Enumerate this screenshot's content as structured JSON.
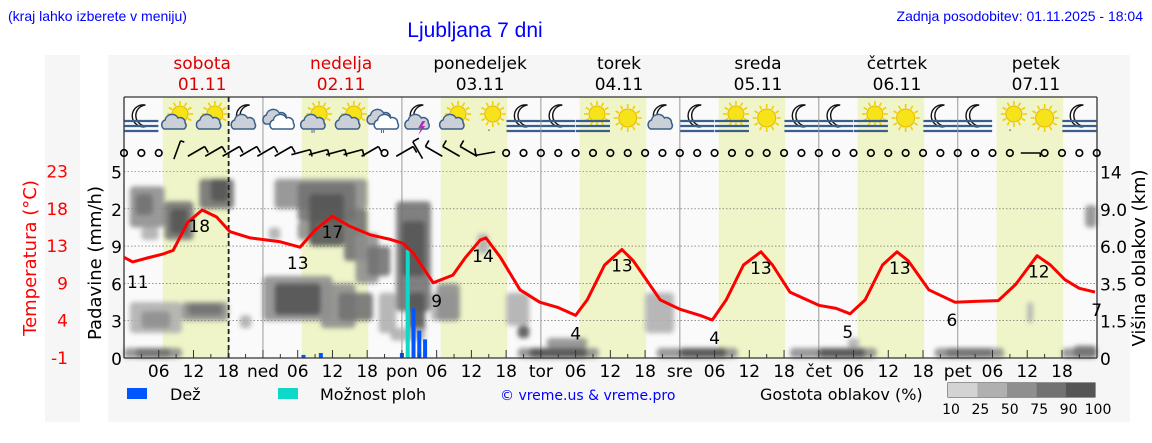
{
  "header": {
    "hint": "(kraj lahko izberete v meniju)",
    "title": "Ljubljana 7 dni",
    "updated": "Zadnja posodobitev: 01.11.2025 - 18:04"
  },
  "days": [
    {
      "name": "sobota",
      "date": "01.11",
      "weekend": true
    },
    {
      "name": "nedelja",
      "date": "02.11",
      "weekend": true
    },
    {
      "name": "ponedeljek",
      "date": "03.11",
      "weekend": false
    },
    {
      "name": "torek",
      "date": "04.11",
      "weekend": false
    },
    {
      "name": "sreda",
      "date": "05.11",
      "weekend": false
    },
    {
      "name": "četrtek",
      "date": "06.11",
      "weekend": false
    },
    {
      "name": "petek",
      "date": "07.11",
      "weekend": false
    }
  ],
  "colors": {
    "temperature": "#ff0000",
    "rain": "#0055ff",
    "shower_chance": "#10d8c8",
    "day_band": "#eff5c8",
    "link": "#0000ff"
  },
  "icons": [
    "moon-fog",
    "sun-cloud",
    "sun-cloud",
    "moon-cloud",
    "cloud",
    "sun-cloud-rain",
    "sun-cloud",
    "cloud-rain",
    "moon-cloud-thunder",
    "sun-cloud",
    "sun-small-cloud",
    "moon-fog",
    "moon-fog",
    "sun-fog",
    "sun",
    "moon-cloud",
    "moon-fog",
    "sun-fog",
    "sun",
    "moon-fog",
    "moon-fog",
    "sun-fog",
    "sun",
    "moon-fog",
    "moon-fog",
    "sun-small-cloud",
    "sun",
    "moon-fog"
  ],
  "chart_data": {
    "type": "line",
    "now_hour": 18.07,
    "x_tick_labels": [
      "06",
      "12",
      "18",
      "ned",
      "06",
      "12",
      "18",
      "pon",
      "06",
      "12",
      "18",
      "tor",
      "06",
      "12",
      "18",
      "sre",
      "06",
      "12",
      "18",
      "čet",
      "06",
      "12",
      "18",
      "pet",
      "06",
      "12",
      "18"
    ],
    "temperature": {
      "axis_title": "Temperatura (°C)",
      "tick_labels": [
        "-1",
        "4",
        "9",
        "13",
        "18",
        "23"
      ],
      "ylim": [
        -1,
        23
      ],
      "points": [
        [
          0,
          12.0
        ],
        [
          1.5,
          11.4
        ],
        [
          4,
          11.9
        ],
        [
          6.7,
          12.4
        ],
        [
          8.5,
          12.9
        ],
        [
          11,
          16.5
        ],
        [
          13.5,
          18.1
        ],
        [
          16,
          17.2
        ],
        [
          18.3,
          15.3
        ],
        [
          21.8,
          14.5
        ],
        [
          27,
          14.0
        ],
        [
          30.4,
          13.3
        ],
        [
          33,
          15.5
        ],
        [
          36,
          17.3
        ],
        [
          39,
          16.0
        ],
        [
          42.5,
          14.9
        ],
        [
          46,
          14.3
        ],
        [
          48.2,
          13.8
        ],
        [
          50,
          12.5
        ],
        [
          53.4,
          8.7
        ],
        [
          56.8,
          9.7
        ],
        [
          59,
          12.0
        ],
        [
          61.5,
          14.2
        ],
        [
          62.5,
          14.5
        ],
        [
          65,
          12.0
        ],
        [
          68.4,
          7.8
        ],
        [
          71.8,
          6.2
        ],
        [
          75,
          5.5
        ],
        [
          78,
          4.5
        ],
        [
          80,
          6.5
        ],
        [
          83,
          11.0
        ],
        [
          86,
          13.0
        ],
        [
          88,
          11.5
        ],
        [
          92.6,
          6.5
        ],
        [
          96,
          5.3
        ],
        [
          99.5,
          4.5
        ],
        [
          101.6,
          3.9
        ],
        [
          104,
          6.5
        ],
        [
          107,
          11.0
        ],
        [
          110,
          12.7
        ],
        [
          112,
          11.0
        ],
        [
          115,
          7.5
        ],
        [
          120,
          5.8
        ],
        [
          123,
          5.4
        ],
        [
          125.4,
          4.7
        ],
        [
          128,
          6.5
        ],
        [
          131,
          11.0
        ],
        [
          133.5,
          12.7
        ],
        [
          135.5,
          11.5
        ],
        [
          139,
          7.8
        ],
        [
          143.5,
          6.2
        ],
        [
          147,
          6.3
        ],
        [
          151,
          6.4
        ],
        [
          154,
          8.5
        ],
        [
          157.7,
          12.2
        ],
        [
          160,
          11.0
        ],
        [
          162.5,
          9.1
        ],
        [
          165,
          8.0
        ],
        [
          167.7,
          7.5
        ]
      ],
      "labels": [
        {
          "t": 1,
          "v": "11"
        },
        {
          "t": 13,
          "v": "18"
        },
        {
          "t": 30,
          "v": "13"
        },
        {
          "t": 36,
          "v": "17"
        },
        {
          "t": 54,
          "v": "9"
        },
        {
          "t": 62,
          "v": "14"
        },
        {
          "t": 78,
          "v": "4"
        },
        {
          "t": 86,
          "v": "13"
        },
        {
          "t": 102,
          "v": "4"
        },
        {
          "t": 110,
          "v": "13"
        },
        {
          "t": 125,
          "v": "5"
        },
        {
          "t": 134,
          "v": "13"
        },
        {
          "t": 143,
          "v": "6"
        },
        {
          "t": 158,
          "v": "12"
        },
        {
          "t": 168,
          "v": "7"
        }
      ]
    },
    "precipitation": {
      "axis_title": "Padavine (mm/h)",
      "tick_labels": [
        "0",
        "3",
        "6",
        "9",
        "2",
        "5"
      ],
      "rain": [
        [
          31,
          0.025
        ],
        [
          34,
          0.04
        ],
        [
          48,
          0.04
        ],
        [
          50,
          0.4
        ],
        [
          51,
          0.22
        ],
        [
          52,
          0.15
        ]
      ],
      "shower_chance": [
        [
          49,
          0.87
        ],
        [
          51,
          0.05
        ]
      ]
    },
    "cloud_height": {
      "axis_title": "Višina oblakov (km)",
      "tick_labels": [
        "0",
        "1.5",
        "3.5",
        "6.0",
        "9.0",
        "14"
      ],
      "levels": [
        0,
        1.5,
        3.5,
        6.0,
        9.0,
        14
      ]
    },
    "cloud_density_patches": [
      [
        1,
        7,
        7.5,
        12,
        50
      ],
      [
        2,
        5,
        8.5,
        11,
        75
      ],
      [
        7,
        12,
        6.5,
        10,
        75
      ],
      [
        8,
        11,
        7,
        9,
        90
      ],
      [
        13,
        19,
        9,
        13,
        75
      ],
      [
        15,
        18,
        10,
        13,
        90
      ],
      [
        3,
        6,
        6.5,
        7.5,
        25
      ],
      [
        1,
        10,
        1.0,
        2.5,
        25
      ],
      [
        3,
        8,
        1.2,
        2,
        50
      ],
      [
        10,
        18,
        1.5,
        2.5,
        50
      ],
      [
        11,
        17,
        1.8,
        2.4,
        75
      ],
      [
        20,
        22,
        1.2,
        1.8,
        25
      ],
      [
        0,
        10,
        0,
        0.4,
        50
      ],
      [
        2,
        8,
        0,
        0.4,
        75
      ],
      [
        25,
        27,
        6.5,
        7.5,
        25
      ],
      [
        30,
        33,
        6.5,
        8,
        50
      ],
      [
        26,
        42,
        9,
        13,
        50
      ],
      [
        30,
        40,
        8,
        12.5,
        75
      ],
      [
        32,
        38,
        6,
        11,
        90
      ],
      [
        38,
        42,
        5,
        9,
        75
      ],
      [
        40,
        44,
        3.5,
        7,
        50
      ],
      [
        42,
        46,
        4,
        6,
        75
      ],
      [
        24,
        36,
        1.5,
        4,
        50
      ],
      [
        26,
        34,
        1.8,
        3.5,
        90
      ],
      [
        34,
        40,
        1.2,
        3.5,
        50
      ],
      [
        37,
        43,
        1.5,
        3,
        75
      ],
      [
        44,
        47,
        1,
        3,
        25
      ],
      [
        47,
        53,
        2,
        10,
        75
      ],
      [
        48,
        52,
        4,
        8,
        90
      ],
      [
        49,
        52,
        1,
        3,
        90
      ],
      [
        53,
        58,
        1.5,
        3,
        25
      ],
      [
        54,
        58,
        1.5,
        3.5,
        50
      ],
      [
        46,
        52,
        0.7,
        1.2,
        25
      ],
      [
        61,
        63,
        5.5,
        7,
        25
      ],
      [
        66,
        70,
        1.3,
        3,
        25
      ],
      [
        68,
        70,
        0.8,
        1.3,
        90
      ],
      [
        68,
        82,
        0,
        0.4,
        50
      ],
      [
        70,
        80,
        0,
        0.4,
        90
      ],
      [
        73,
        80,
        0.4,
        0.8,
        50
      ],
      [
        90,
        95,
        1,
        3,
        25
      ],
      [
        92,
        106,
        0,
        0.4,
        50
      ],
      [
        96,
        104,
        0,
        0.4,
        90
      ],
      [
        115,
        130,
        0,
        0.4,
        50
      ],
      [
        120,
        128,
        0,
        0.4,
        90
      ],
      [
        125,
        127,
        0.4,
        0.8,
        25
      ],
      [
        140,
        152,
        0,
        0.4,
        50
      ],
      [
        142,
        150,
        0,
        0.4,
        75
      ],
      [
        156,
        157,
        1.4,
        2.5,
        25
      ],
      [
        162,
        168,
        0,
        0.4,
        50
      ],
      [
        164,
        168,
        0,
        0.5,
        75
      ],
      [
        166,
        168,
        7.5,
        9.5,
        50
      ]
    ],
    "wind": [
      null,
      null,
      null,
      [
        20,
        5
      ],
      [
        60,
        10
      ],
      [
        60,
        10
      ],
      [
        60,
        10
      ],
      [
        60,
        10
      ],
      [
        60,
        10
      ],
      [
        60,
        10
      ],
      [
        75,
        10
      ],
      [
        75,
        10
      ],
      [
        75,
        10
      ],
      [
        75,
        10
      ],
      [
        60,
        10
      ],
      null,
      [
        60,
        10
      ],
      [
        330,
        10
      ],
      [
        300,
        10
      ],
      [
        300,
        10
      ],
      [
        300,
        10
      ],
      [
        260,
        10
      ],
      null,
      null,
      null,
      null,
      null,
      null,
      null,
      null,
      null,
      null,
      null,
      null,
      null,
      null,
      null,
      null,
      null,
      null,
      null,
      null,
      null,
      null,
      null,
      null,
      null,
      null,
      null,
      null,
      null,
      null,
      [
        90,
        5
      ],
      null,
      null,
      null,
      null
    ]
  },
  "legend": {
    "rain": "Dež",
    "shower_chance": "Možnost ploh",
    "copyright": "© vreme.us & vreme.pro",
    "cloud_density_title": "Gostota oblakov (%)",
    "cloud_density_levels": [
      "10",
      "25",
      "50",
      "75",
      "90",
      "100"
    ],
    "cloud_density_colors": [
      "#d3d3d3",
      "#b0b0b0",
      "#8f8f8f",
      "#727272",
      "#555555"
    ]
  }
}
